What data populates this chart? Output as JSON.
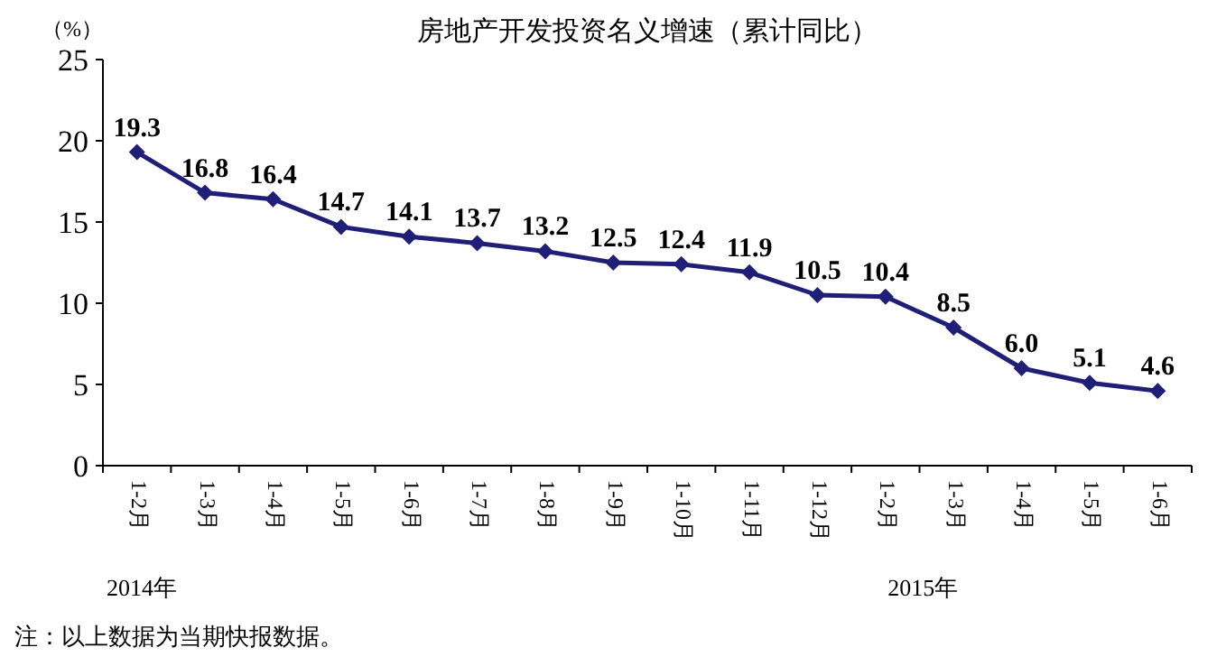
{
  "chart_data": {
    "type": "line",
    "title": "房地产开发投资名义增速（累计同比）",
    "ylabel": "（%）",
    "categories": [
      "1-2月",
      "1-3月",
      "1-4月",
      "1-5月",
      "1-6月",
      "1-7月",
      "1-8月",
      "1-9月",
      "1-10月",
      "1-11月",
      "1-12月",
      "1-2月",
      "1-3月",
      "1-4月",
      "1-5月",
      "1-6月"
    ],
    "series": [
      {
        "color": "#1f1f78",
        "values": [
          19.3,
          16.8,
          16.4,
          14.7,
          14.1,
          13.7,
          13.2,
          12.5,
          12.4,
          11.9,
          10.5,
          10.4,
          8.5,
          6.0,
          5.1,
          4.6
        ],
        "value_labels": [
          "19.3",
          "16.8",
          "16.4",
          "14.7",
          "14.1",
          "13.7",
          "13.2",
          "12.5",
          "12.4",
          "11.9",
          "10.5",
          "10.4",
          "8.5",
          "6.0",
          "5.1",
          "4.6"
        ]
      }
    ],
    "ylim": [
      0,
      25
    ],
    "yticks": [
      0,
      5,
      10,
      15,
      20,
      25
    ],
    "grid": false,
    "marker": "diamond",
    "line_style": "solid",
    "annotations": [
      "2014年",
      "2015年",
      "注：以上数据为当期快报数据。"
    ]
  }
}
